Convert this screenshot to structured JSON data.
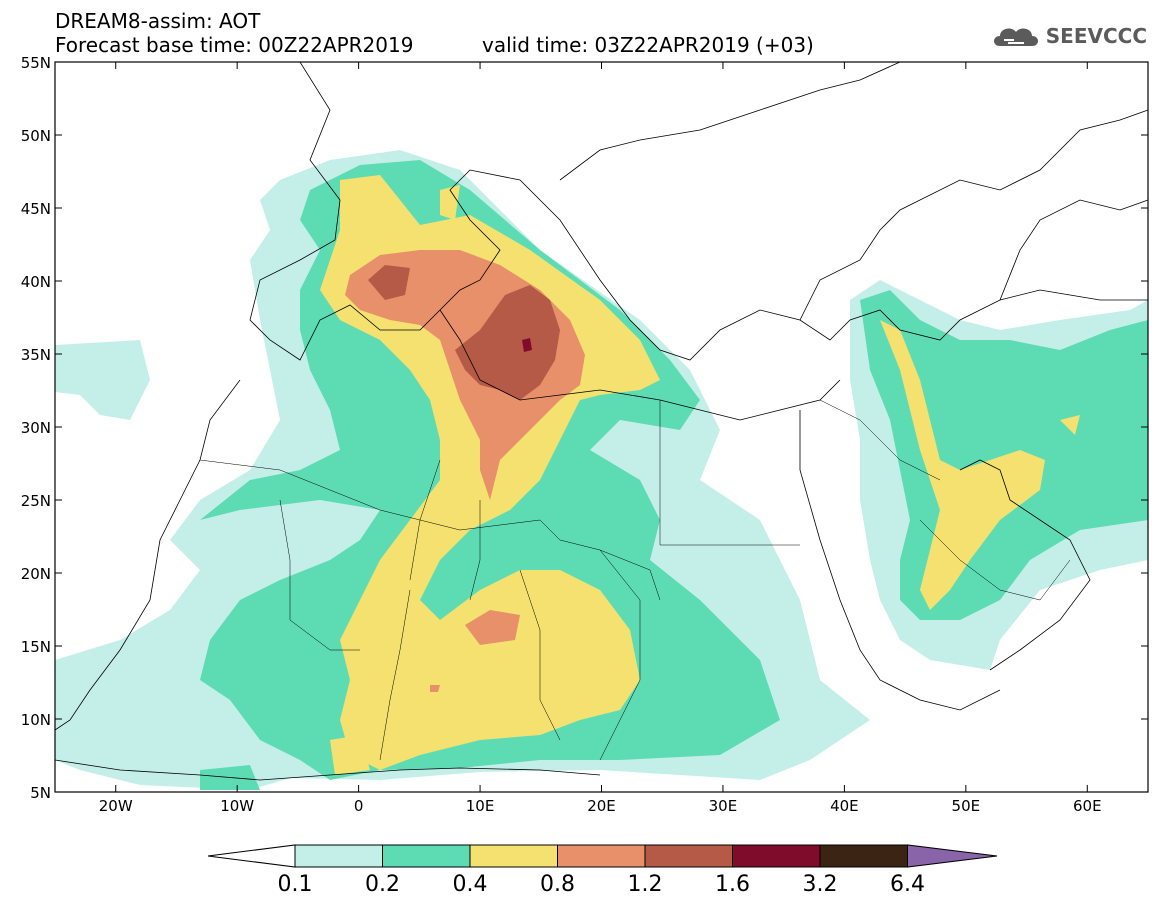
{
  "title": {
    "model_field": "DREAM8-assim: AOT",
    "base_time": "Forecast base time: 00Z22APR2019",
    "valid_time": "valid time: 03Z22APR2019 (+03)"
  },
  "logo": {
    "text": "SEEVCCC",
    "icon": "cloud-logo-icon"
  },
  "map": {
    "lat_range": [
      5,
      55
    ],
    "lon_range": [
      -25,
      65
    ],
    "lat_labels": [
      {
        "lat": 55,
        "label": "55N"
      },
      {
        "lat": 50,
        "label": "50N"
      },
      {
        "lat": 45,
        "label": "45N"
      },
      {
        "lat": 40,
        "label": "40N"
      },
      {
        "lat": 35,
        "label": "35N"
      },
      {
        "lat": 30,
        "label": "30N"
      },
      {
        "lat": 25,
        "label": "25N"
      },
      {
        "lat": 20,
        "label": "20N"
      },
      {
        "lat": 15,
        "label": "15N"
      },
      {
        "lat": 10,
        "label": "10N"
      },
      {
        "lat": 5,
        "label": "5N"
      }
    ],
    "lon_labels": [
      {
        "lon": -20,
        "label": "20W"
      },
      {
        "lon": -10,
        "label": "10W"
      },
      {
        "lon": 0,
        "label": "0"
      },
      {
        "lon": 10,
        "label": "10E"
      },
      {
        "lon": 20,
        "label": "20E"
      },
      {
        "lon": 30,
        "label": "30E"
      },
      {
        "lon": 40,
        "label": "40E"
      },
      {
        "lon": 50,
        "label": "50E"
      },
      {
        "lon": 60,
        "label": "60E"
      }
    ]
  },
  "legend": {
    "thresholds": [
      "0.1",
      "0.2",
      "0.4",
      "0.8",
      "1.2",
      "1.6",
      "3.2",
      "6.4"
    ],
    "colors": [
      "#ffffff",
      "#c4efe9",
      "#5ddcb4",
      "#f5e170",
      "#e8906a",
      "#b55a46",
      "#7e0c2a",
      "#3c2414",
      "#8a64a8"
    ]
  }
}
